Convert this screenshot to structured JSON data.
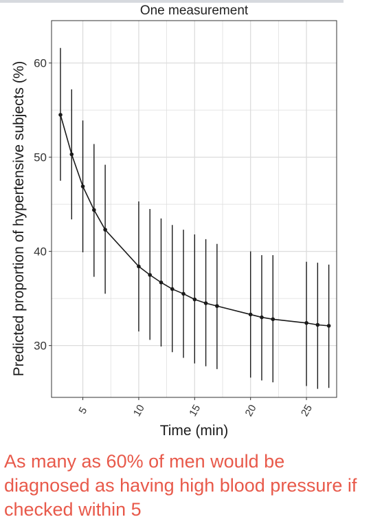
{
  "chart_data": {
    "type": "line",
    "title": "One measurement",
    "xlabel": "Time (min)",
    "ylabel": "Predicted proportion of hypertensive subjects (%)",
    "xlim": [
      2.2,
      27.7
    ],
    "ylim": [
      24.5,
      64.5
    ],
    "xticks": [
      5,
      10,
      15,
      20,
      25
    ],
    "yticks": [
      30,
      40,
      50,
      60
    ],
    "grid": true,
    "points": [
      {
        "x": 3,
        "y": 54.5,
        "lower": 47.5,
        "upper": 61.6
      },
      {
        "x": 4,
        "y": 50.3,
        "lower": 43.4,
        "upper": 57.2
      },
      {
        "x": 5,
        "y": 46.9,
        "lower": 39.9,
        "upper": 53.9
      },
      {
        "x": 6,
        "y": 44.4,
        "lower": 37.3,
        "upper": 51.4
      },
      {
        "x": 7,
        "y": 42.3,
        "lower": 35.5,
        "upper": 49.2
      },
      {
        "x": 10,
        "y": 38.4,
        "lower": 31.5,
        "upper": 45.3
      },
      {
        "x": 11,
        "y": 37.5,
        "lower": 30.6,
        "upper": 44.5
      },
      {
        "x": 12,
        "y": 36.7,
        "lower": 29.9,
        "upper": 43.5
      },
      {
        "x": 13,
        "y": 36.0,
        "lower": 29.3,
        "upper": 42.8
      },
      {
        "x": 14,
        "y": 35.5,
        "lower": 28.7,
        "upper": 42.3
      },
      {
        "x": 15,
        "y": 34.9,
        "lower": 28.1,
        "upper": 41.8
      },
      {
        "x": 16,
        "y": 34.5,
        "lower": 27.8,
        "upper": 41.3
      },
      {
        "x": 17,
        "y": 34.2,
        "lower": 27.5,
        "upper": 40.8
      },
      {
        "x": 20,
        "y": 33.3,
        "lower": 26.6,
        "upper": 40.0
      },
      {
        "x": 21,
        "y": 33.0,
        "lower": 26.3,
        "upper": 39.6
      },
      {
        "x": 22,
        "y": 32.8,
        "lower": 26.1,
        "upper": 39.6
      },
      {
        "x": 25,
        "y": 32.4,
        "lower": 25.7,
        "upper": 38.9
      },
      {
        "x": 26,
        "y": 32.2,
        "lower": 25.4,
        "upper": 38.8
      },
      {
        "x": 27,
        "y": 32.1,
        "lower": 25.5,
        "upper": 38.6
      }
    ]
  },
  "caption": "As many as 60% of men would be diagnosed as having high blood pressure if checked within 5",
  "colors": {
    "line": "#1a1a1a",
    "grid": "#dcdcdc",
    "panel_border": "#333333",
    "caption": "#e8594a"
  }
}
